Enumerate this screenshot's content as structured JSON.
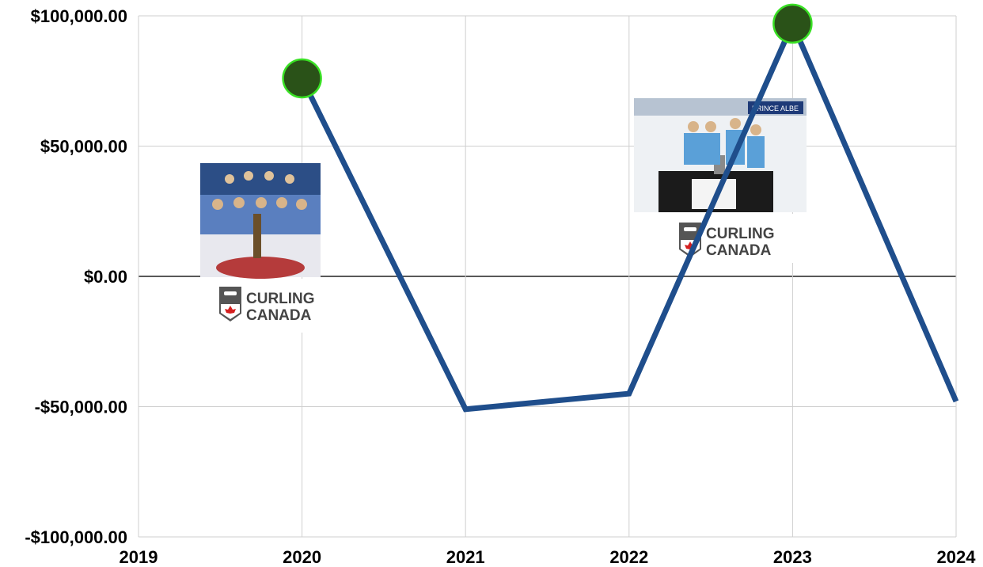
{
  "chart_data": {
    "type": "line",
    "x": [
      2020,
      2021,
      2022,
      2023,
      2024
    ],
    "values": [
      76000,
      -51000,
      -45000,
      97000,
      -48000
    ],
    "highlight_points": [
      {
        "x": 2020,
        "y": 76000
      },
      {
        "x": 2023,
        "y": 97000
      }
    ],
    "xlim": [
      2019,
      2024
    ],
    "ylim": [
      -100000,
      100000
    ],
    "x_ticks": [
      2019,
      2020,
      2021,
      2022,
      2023,
      2024
    ],
    "y_ticks": [
      -100000,
      -50000,
      0,
      50000,
      100000
    ],
    "y_tick_labels": [
      "-$100,000.00",
      "-$50,000.00",
      "$0.00",
      "$50,000.00",
      "$100,000.00"
    ],
    "x_tick_labels": [
      "2019",
      "2020",
      "2021",
      "2022",
      "2023",
      "2024"
    ],
    "grid": true,
    "line_color": "#1f4e8c",
    "marker_fill": "#2a5218",
    "marker_stroke": "#39e024",
    "annotations": [
      {
        "x": 2020,
        "logo_line1": "CURLING",
        "logo_line2": "CANADA",
        "photo": "team-photo"
      },
      {
        "x": 2023,
        "logo_line1": "CURLING",
        "logo_line2": "CANADA",
        "photo": "team-photo"
      }
    ]
  }
}
